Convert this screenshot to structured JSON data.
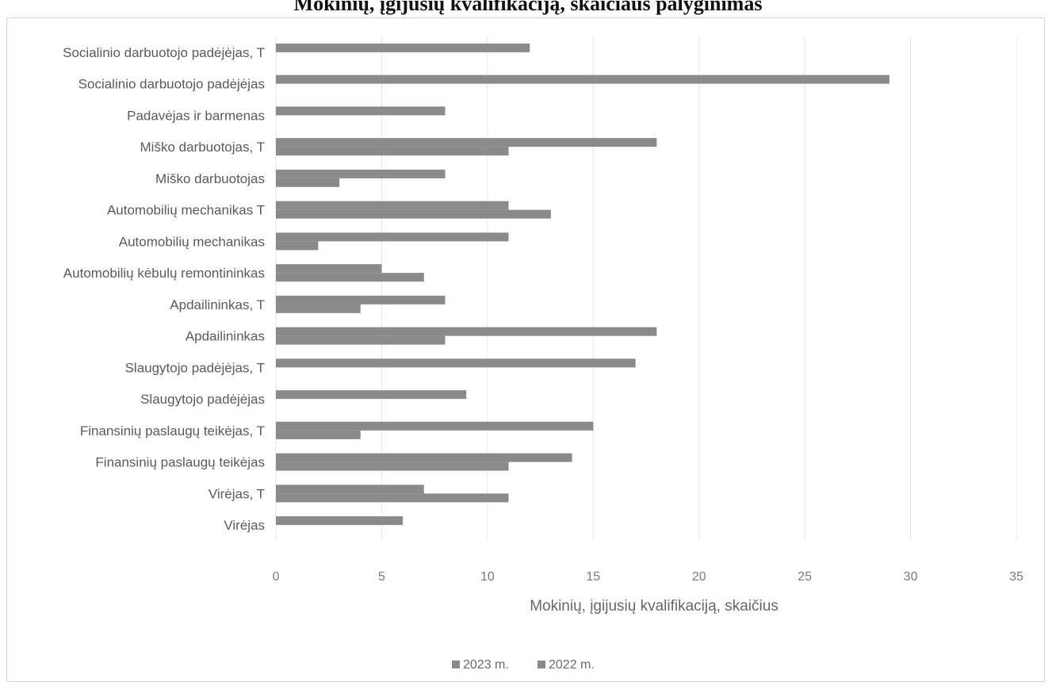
{
  "chart_data": {
    "type": "bar",
    "orientation": "horizontal",
    "title": "Mokinių, įgijusių kvalifikaciją, skaičiaus palyginimas",
    "xlabel": "Mokinių, įgijusių kvalifikaciją, skaičius",
    "ylabel": "",
    "xlim": [
      0,
      35
    ],
    "xticks": [
      "0",
      "5",
      "10",
      "15",
      "20",
      "25",
      "30",
      "35"
    ],
    "grid": true,
    "legend_position": "bottom",
    "categories": [
      "Socialinio darbuotojo padėjėjas, T",
      "Socialinio darbuotojo padėjėjas",
      "Padavėjas ir barmenas",
      "Miško darbuotojas, T",
      "Miško darbuotojas",
      "Automobilių mechanikas T",
      "Automobilių mechanikas",
      "Automobilių kėbulų remontininkas",
      "Apdailininkas, T",
      "Apdailininkas",
      "Slaugytojo padėjėjas, T",
      "Slaugytojo padėjėjas",
      "Finansinių paslaugų teikėjas, T",
      "Finansinių paslaugų teikėjas",
      "Virėjas, T",
      "Virėjas"
    ],
    "series": [
      {
        "name": "2023 m.",
        "color": "#8a8a8a",
        "values": [
          12,
          29,
          8,
          18,
          8,
          11,
          11,
          5,
          8,
          18,
          17,
          9,
          15,
          14,
          7,
          6
        ]
      },
      {
        "name": "2022 m.",
        "color": "#8a8a8a",
        "values": [
          0,
          0,
          0,
          11,
          3,
          13,
          2,
          7,
          4,
          8,
          0,
          0,
          4,
          11,
          11,
          0
        ]
      }
    ]
  }
}
